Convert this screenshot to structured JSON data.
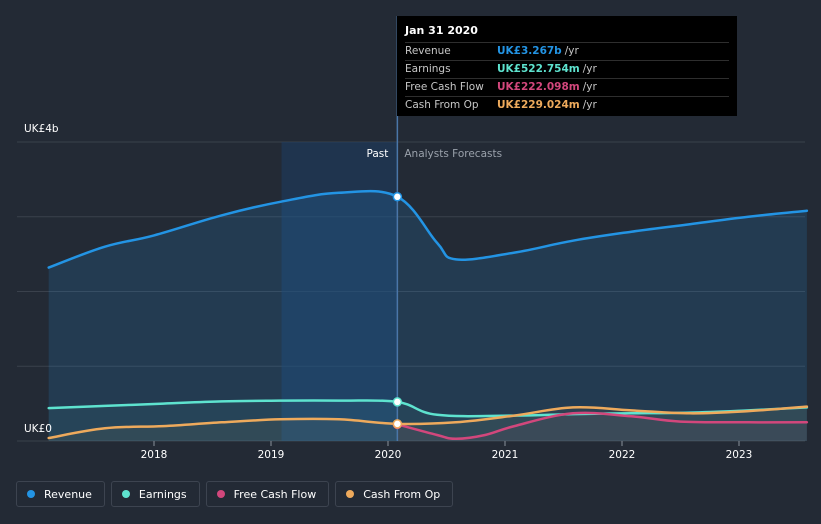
{
  "chart_data": {
    "type": "line",
    "title": "",
    "x_ticks": [
      "2018",
      "2019",
      "2020",
      "2021",
      "2022",
      "2023"
    ],
    "y_tick_labels": {
      "top": "UK£4b",
      "bottom": "UK£0"
    },
    "ylim": [
      0,
      4
    ],
    "xlim": [
      2017.1,
      2023.58
    ],
    "divider_x": 2020.08,
    "past_highlight_start": 2019.09,
    "past_label": "Past",
    "forecast_label": "Analysts Forecasts",
    "series": [
      {
        "name": "Revenue",
        "color": "#2394e4",
        "fill": true,
        "x": [
          2017.1,
          2017.58,
          2018.0,
          2018.58,
          2019.08,
          2019.58,
          2020.08,
          2020.42,
          2020.58,
          2021.08,
          2021.58,
          2022.08,
          2022.58,
          2023.08,
          2023.58
        ],
        "values": [
          2.32,
          2.6,
          2.75,
          3.02,
          3.2,
          3.32,
          3.267,
          2.65,
          2.43,
          2.52,
          2.68,
          2.8,
          2.9,
          3.0,
          3.08
        ]
      },
      {
        "name": "Earnings",
        "color": "#5ee3cf",
        "fill": false,
        "x": [
          2017.1,
          2017.58,
          2018.08,
          2018.58,
          2019.08,
          2019.58,
          2020.08,
          2020.42,
          2021.08,
          2021.58,
          2022.08,
          2022.58,
          2023.08,
          2023.58
        ],
        "values": [
          0.44,
          0.47,
          0.5,
          0.53,
          0.54,
          0.54,
          0.522754,
          0.35,
          0.34,
          0.36,
          0.37,
          0.38,
          0.41,
          0.45
        ]
      },
      {
        "name": "Free Cash Flow",
        "color": "#d2477c",
        "fill": false,
        "x": [
          2020.08,
          2020.42,
          2020.58,
          2020.83,
          2021.08,
          2021.58,
          2022.08,
          2022.5,
          2023.08,
          2023.58
        ],
        "values": [
          0.222098,
          0.08,
          0.03,
          0.08,
          0.2,
          0.37,
          0.33,
          0.26,
          0.25,
          0.25
        ]
      },
      {
        "name": "Cash From Op",
        "color": "#eeaa5c",
        "fill": false,
        "x": [
          2017.1,
          2017.58,
          2018.08,
          2018.58,
          2019.08,
          2019.58,
          2020.08,
          2020.58,
          2021.08,
          2021.58,
          2022.08,
          2022.58,
          2023.08,
          2023.58
        ],
        "values": [
          0.04,
          0.17,
          0.2,
          0.25,
          0.29,
          0.29,
          0.229024,
          0.25,
          0.34,
          0.45,
          0.41,
          0.37,
          0.4,
          0.46
        ]
      }
    ]
  },
  "tooltip": {
    "date": "Jan 31 2020",
    "unit": "/yr",
    "rows": [
      {
        "label": "Revenue",
        "value": "UK£3.267b",
        "color": "#2394e4"
      },
      {
        "label": "Earnings",
        "value": "UK£522.754m",
        "color": "#5ee3cf"
      },
      {
        "label": "Free Cash Flow",
        "value": "UK£222.098m",
        "color": "#d2477c"
      },
      {
        "label": "Cash From Op",
        "value": "UK£229.024m",
        "color": "#eeaa5c"
      }
    ]
  },
  "legend": [
    {
      "label": "Revenue",
      "color": "#2394e4"
    },
    {
      "label": "Earnings",
      "color": "#5ee3cf"
    },
    {
      "label": "Free Cash Flow",
      "color": "#d2477c"
    },
    {
      "label": "Cash From Op",
      "color": "#eeaa5c"
    }
  ]
}
